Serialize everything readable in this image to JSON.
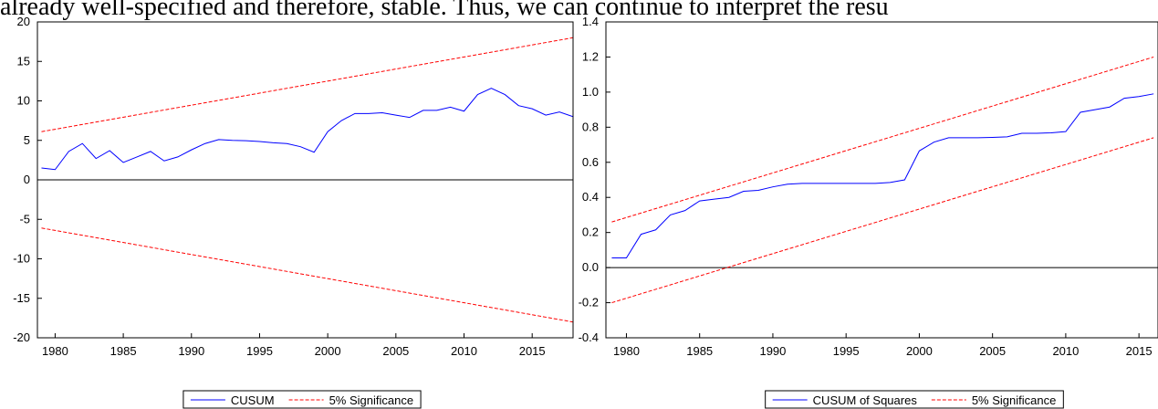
{
  "caption_text": "already well-specified and therefore, stable. Thus, we can continue to interpret the resu",
  "chart_data": [
    {
      "type": "line",
      "x": [
        1979,
        1980,
        1981,
        1982,
        1983,
        1984,
        1985,
        1986,
        1987,
        1988,
        1989,
        1990,
        1991,
        1992,
        1993,
        1994,
        1995,
        1996,
        1997,
        1998,
        1999,
        2000,
        2001,
        2002,
        2003,
        2004,
        2005,
        2006,
        2007,
        2008,
        2009,
        2010,
        2011,
        2012,
        2013,
        2014,
        2015,
        2016,
        2017,
        2018
      ],
      "series": [
        {
          "name": "CUSUM",
          "color": "#0000ff",
          "values": [
            1.5,
            1.3,
            3.6,
            4.6,
            2.7,
            3.7,
            2.2,
            2.9,
            3.6,
            2.4,
            2.9,
            3.8,
            4.6,
            5.1,
            5.0,
            4.95,
            4.85,
            4.7,
            4.6,
            4.2,
            3.5,
            6.1,
            7.5,
            8.4,
            8.4,
            8.5,
            8.2,
            7.9,
            8.8,
            8.8,
            9.2,
            8.7,
            10.8,
            11.6,
            10.8,
            9.4,
            9.0,
            8.2,
            8.6,
            8.0
          ]
        },
        {
          "name": "5% Significance",
          "color": "#ff0000",
          "dashed": true,
          "x": [
            1979,
            2018
          ],
          "values": [
            6.1,
            18
          ]
        },
        {
          "color": "#ff0000",
          "dashed": true,
          "x": [
            1979,
            2018
          ],
          "values": [
            -6.1,
            -18
          ]
        }
      ],
      "xlim": [
        1978.7,
        2018
      ],
      "xticks": [
        1980,
        1985,
        1990,
        1995,
        2000,
        2005,
        2010,
        2015
      ],
      "ylim": [
        -20,
        20
      ],
      "yticks": [
        -20,
        -15,
        -10,
        -5,
        0,
        5,
        10,
        15,
        20
      ]
    },
    {
      "type": "line",
      "x": [
        1979,
        1980,
        1981,
        1982,
        1983,
        1984,
        1985,
        1986,
        1987,
        1988,
        1989,
        1990,
        1991,
        1992,
        1993,
        1994,
        1995,
        1996,
        1997,
        1998,
        1999,
        2000,
        2001,
        2002,
        2003,
        2004,
        2005,
        2006,
        2007,
        2008,
        2009,
        2010,
        2011,
        2012,
        2013,
        2014,
        2015,
        2016
      ],
      "series": [
        {
          "name": "CUSUM of Squares",
          "color": "#0000ff",
          "values": [
            0.055,
            0.055,
            0.19,
            0.215,
            0.3,
            0.325,
            0.38,
            0.39,
            0.4,
            0.435,
            0.44,
            0.46,
            0.475,
            0.48,
            0.48,
            0.48,
            0.48,
            0.48,
            0.48,
            0.485,
            0.5,
            0.665,
            0.715,
            0.74,
            0.74,
            0.74,
            0.742,
            0.745,
            0.765,
            0.765,
            0.768,
            0.775,
            0.885,
            0.9,
            0.915,
            0.965,
            0.975,
            0.99
          ]
        },
        {
          "name": "5% Significance",
          "color": "#ff0000",
          "dashed": true,
          "x": [
            1979,
            2016
          ],
          "values": [
            0.26,
            1.2
          ]
        },
        {
          "color": "#ff0000",
          "dashed": true,
          "x": [
            1979,
            2016
          ],
          "values": [
            -0.2,
            0.74
          ]
        }
      ],
      "xlim": [
        1978.6,
        2016.3
      ],
      "xticks": [
        1980,
        1985,
        1990,
        1995,
        2000,
        2005,
        2010,
        2015
      ],
      "ylim": [
        -0.4,
        1.4
      ],
      "yticks": [
        -0.4,
        -0.2,
        {
          "value": 0,
          "label": "0.0"
        },
        0.2,
        0.4,
        0.6,
        0.8,
        {
          "value": 1,
          "label": "1.0"
        },
        1.2,
        1.4
      ]
    }
  ]
}
